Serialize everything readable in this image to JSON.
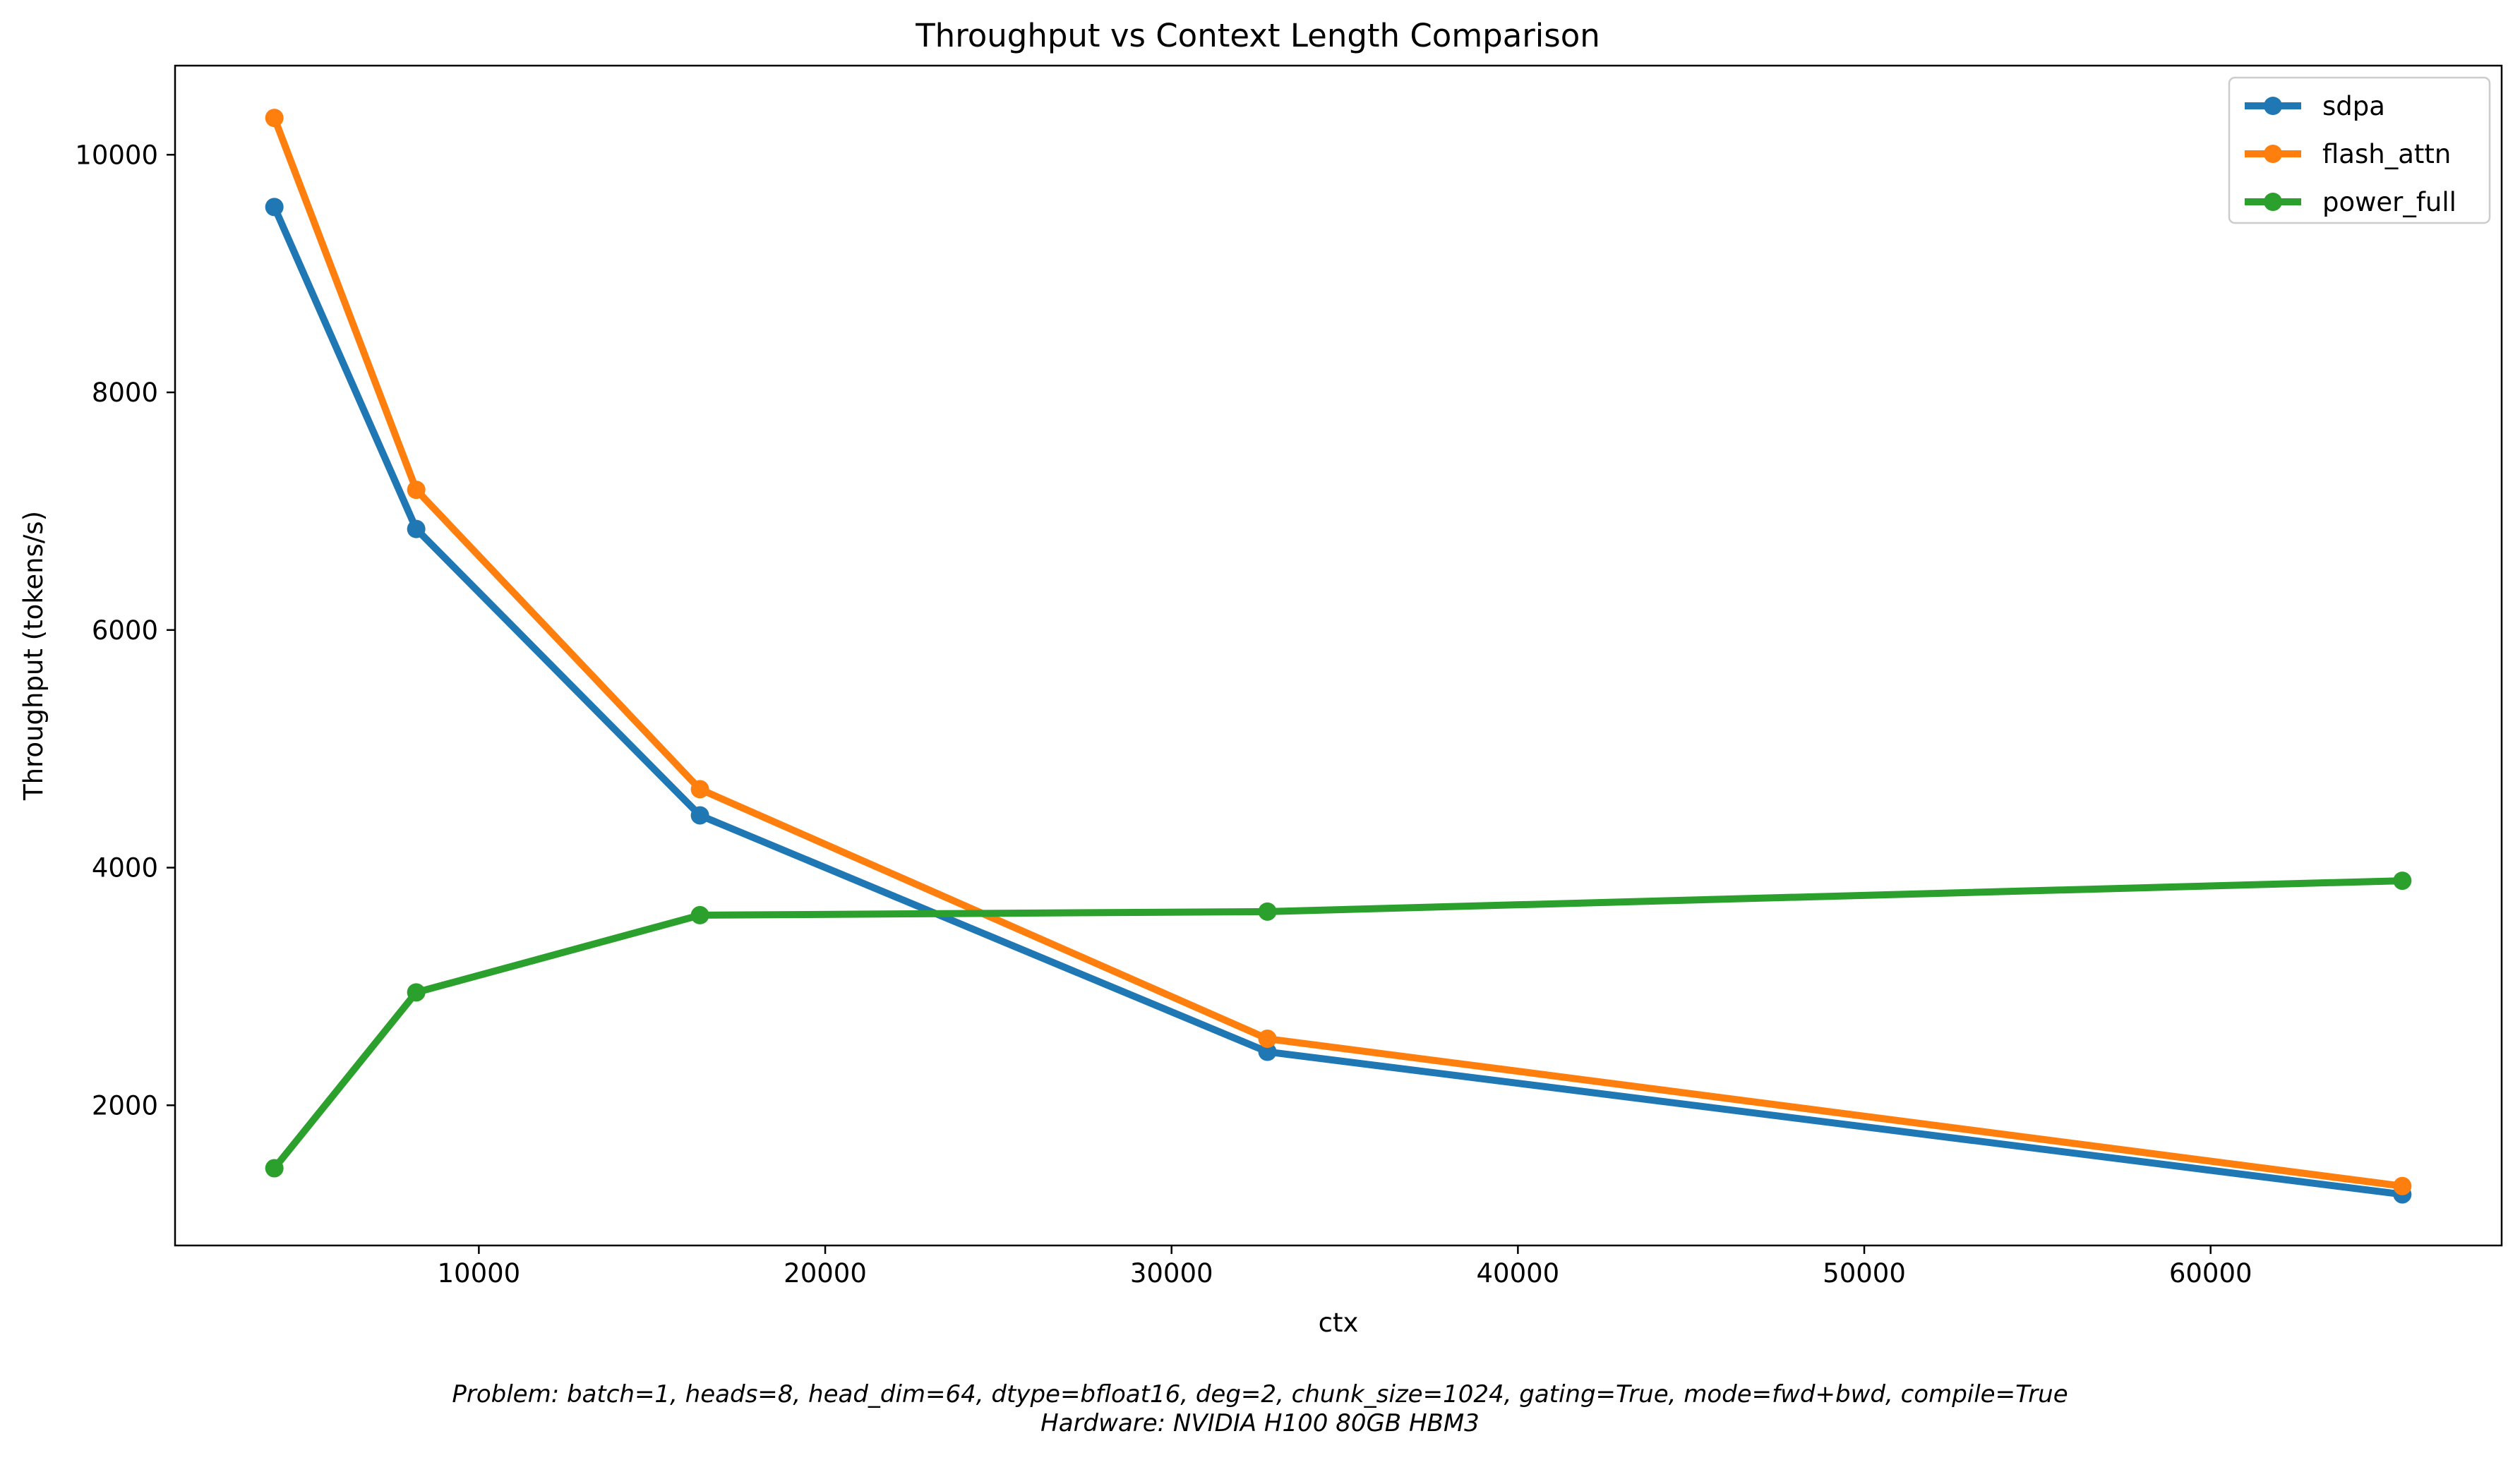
{
  "chart_data": {
    "type": "line",
    "title": "Throughput vs Context Length Comparison",
    "xlabel": "ctx",
    "ylabel": "Throughput (tokens/s)",
    "x": [
      4096,
      8192,
      16384,
      32768,
      65536
    ],
    "xlim": [
      1229,
      68403
    ],
    "ylim": [
      820,
      10750
    ],
    "xticks": [
      10000,
      20000,
      30000,
      40000,
      50000,
      60000
    ],
    "yticks": [
      2000,
      4000,
      6000,
      8000,
      10000
    ],
    "xtick_labels": [
      "10000",
      "20000",
      "30000",
      "40000",
      "50000",
      "60000"
    ],
    "ytick_labels": [
      "2000",
      "4000",
      "6000",
      "8000",
      "10000"
    ],
    "grid": false,
    "legend_position": "top-right",
    "series": [
      {
        "name": "sdpa",
        "color": "#1f77b4",
        "values": [
          9560,
          6850,
          4440,
          2450,
          1250
        ]
      },
      {
        "name": "flash_attn",
        "color": "#ff7f0e",
        "values": [
          10310,
          7180,
          4660,
          2560,
          1320
        ]
      },
      {
        "name": "power_full",
        "color": "#2ca02c",
        "values": [
          1470,
          2950,
          3600,
          3630,
          3890
        ]
      }
    ]
  },
  "footer": {
    "problem": "Problem: batch=1, heads=8, head_dim=64, dtype=bfloat16, deg=2, chunk_size=1024, gating=True, mode=fwd+bwd, compile=True",
    "hardware": "Hardware: NVIDIA H100 80GB HBM3"
  }
}
